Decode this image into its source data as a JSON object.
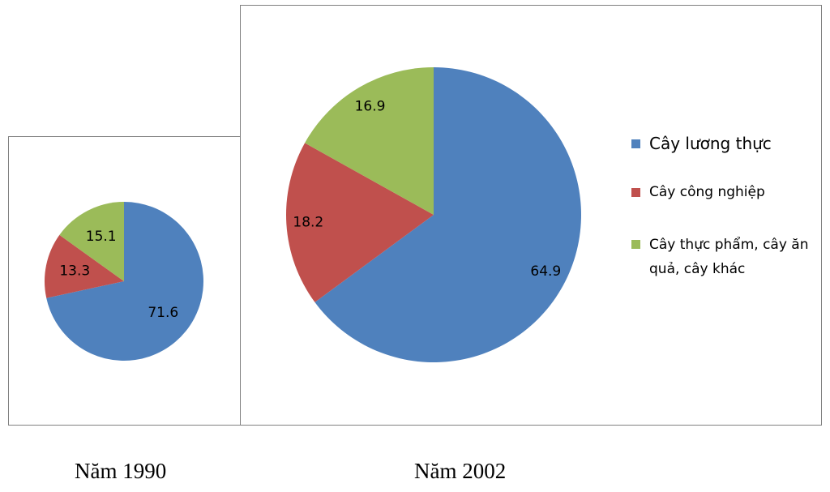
{
  "chart_data": [
    {
      "type": "pie",
      "caption": "Năm 1990",
      "categories": [
        "Cây lương thực",
        "Cây công nghiệp",
        "Cây thực phẩm, cây ăn quả, cây khác"
      ],
      "values": [
        71.6,
        13.3,
        15.1
      ],
      "colors": [
        "#4f81bd",
        "#c0504d",
        "#9bbb59"
      ],
      "data_labels": [
        "71.6",
        "13.3",
        "15.1"
      ]
    },
    {
      "type": "pie",
      "caption": "Năm 2002",
      "categories": [
        "Cây lương thực",
        "Cây công nghiệp",
        "Cây thực phẩm, cây ăn quả, cây khác"
      ],
      "values": [
        64.9,
        18.2,
        16.9
      ],
      "colors": [
        "#4f81bd",
        "#c0504d",
        "#9bbb59"
      ],
      "data_labels": [
        "64.9",
        "18.2",
        "16.9"
      ],
      "legend": {
        "placement": "right",
        "entries": [
          "Cây lương thực",
          "Cây công nghiệp",
          "Cây thực phẩm, cây ăn quả, cây khác"
        ]
      }
    }
  ]
}
